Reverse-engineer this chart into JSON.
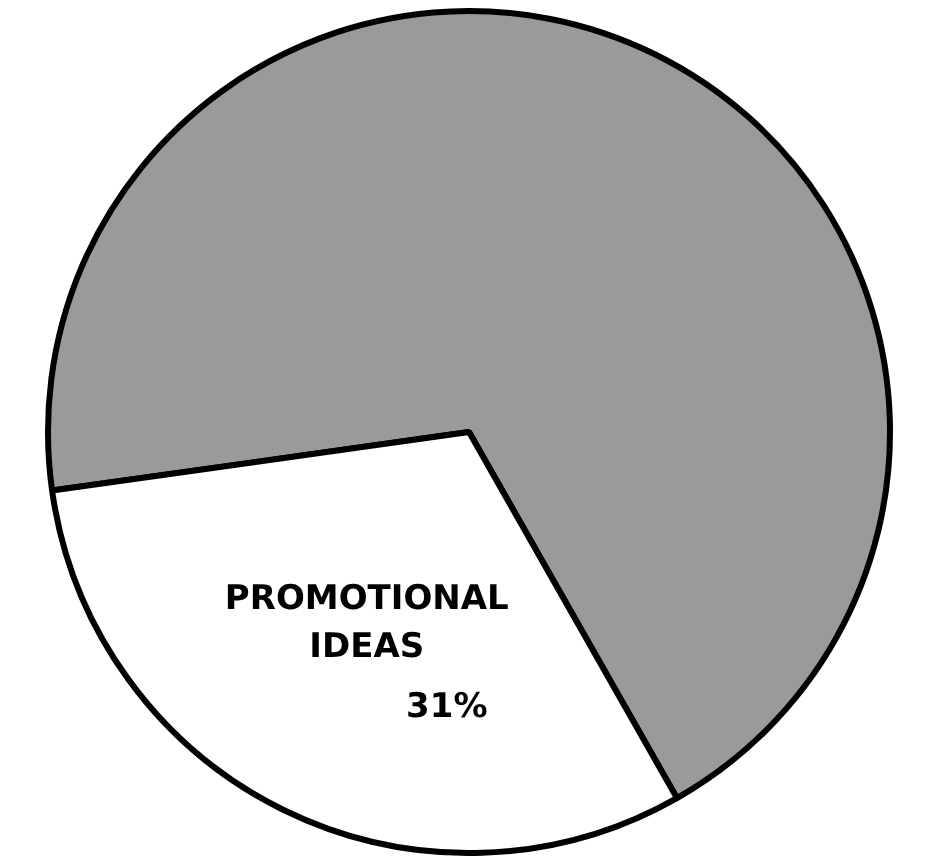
{
  "chart_data": {
    "type": "pie",
    "categories": [
      null,
      "PROMOTIONAL IDEAS"
    ],
    "values": [
      69,
      31
    ],
    "colors": [
      "#9a9a9a",
      "#ffffff"
    ],
    "value_labels": [
      null,
      "31%"
    ],
    "legend": false
  }
}
